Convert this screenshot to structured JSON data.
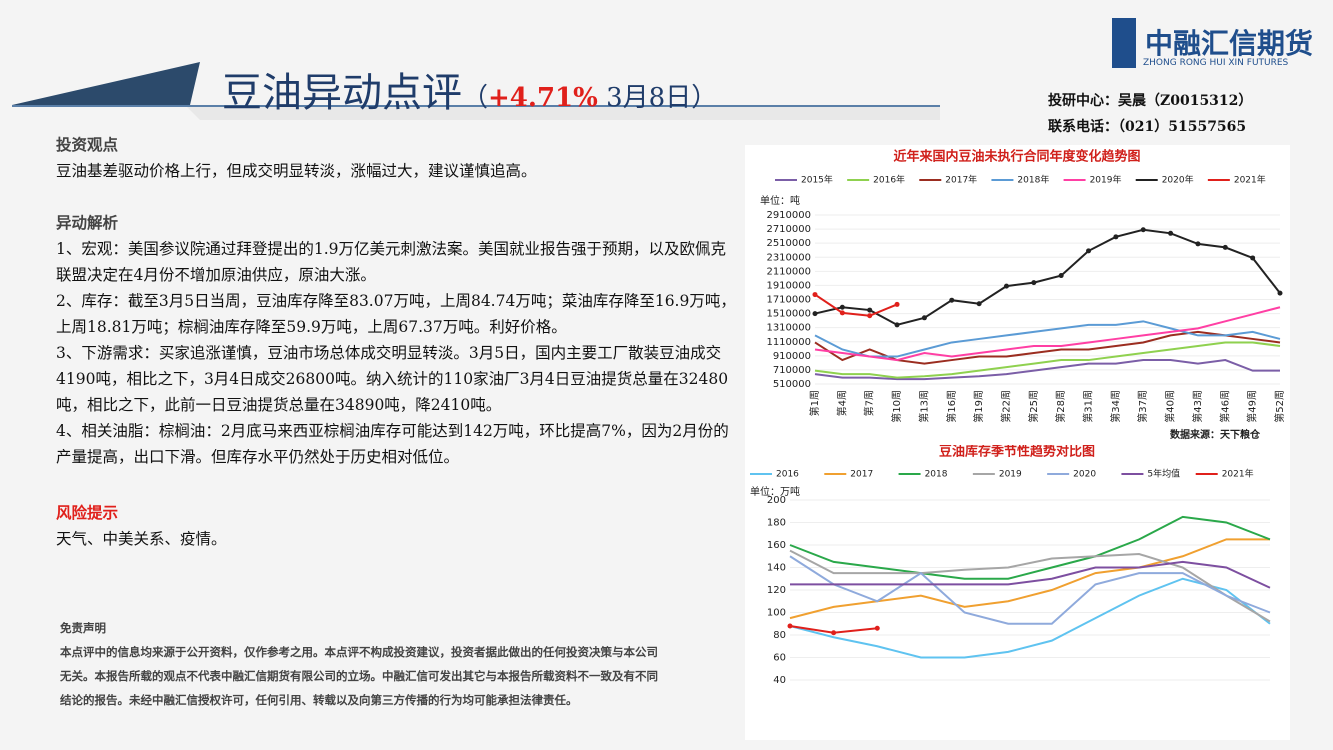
{
  "header": {
    "title": "豆油异动点评",
    "change": "+4.71%",
    "date": "3月8日",
    "contact": "投研中心：吴晨（Z0015312）",
    "phone": "联系电话：（021）51557565",
    "logo": "中融汇信期货",
    "logo_en": "ZHONG RONG HUI XIN FUTURES"
  },
  "view": {
    "heading": "投资观点",
    "text": "豆油基差驱动价格上行，但成交明显转淡，涨幅过大，建议谨慎追高。"
  },
  "analysis": {
    "heading": "异动解析",
    "items": [
      "1、宏观：美国参议院通过拜登提出的1.9万亿美元刺激法案。美国就业报告强于预期，以及欧佩克联盟决定在4月份不增加原油供应，原油大涨。",
      "2、库存：截至3月5日当周，豆油库存降至83.07万吨，上周84.74万吨；菜油库存降至16.9万吨，上周18.81万吨；棕榈油库存降至59.9万吨，上周67.37万吨。利好价格。",
      "3、下游需求：买家追涨谨慎，豆油市场总体成交明显转淡。3月5日，国内主要工厂散装豆油成交4190吨，相比之下，3月4日成交26800吨。纳入统计的110家油厂3月4日豆油提货总量在32480吨，相比之下，此前一日豆油提货总量在34890吨，降2410吨。",
      "4、相关油脂：棕榈油：2月底马来西亚棕榈油库存可能达到142万吨，环比提高7%，因为2月份的产量提高，出口下滑。但库存水平仍然处于历史相对低位。"
    ]
  },
  "risk": {
    "heading": "风险提示",
    "text": "天气、中美关系、疫情。"
  },
  "disclaimer": {
    "heading": "免责声明",
    "text": "本点评中的信息均来源于公开资料，仅作参考之用。本点评不构成投资建议，投资者据此做出的任何投资决策与本公司无关。本报告所载的观点不代表中融汇信期货有限公司的立场。中融汇信可发出其它与本报告所载资料不一致及有不同结论的报告。未经中融汇信授权许可，任何引用、转载以及向第三方传播的行为均可能承担法律责任。"
  },
  "chart_data": [
    {
      "type": "line",
      "title": "近年来国内豆油未执行合同年度变化趋势图",
      "unit": "单位：吨",
      "source": "数据来源：天下粮仓",
      "categories": [
        "第1周",
        "第4周",
        "第7周",
        "第10周",
        "第13周",
        "第16周",
        "第19周",
        "第22周",
        "第25周",
        "第28周",
        "第31周",
        "第34周",
        "第37周",
        "第40周",
        "第43周",
        "第46周",
        "第49周",
        "第52周"
      ],
      "ylim": [
        510000,
        2910000
      ],
      "yticks": [
        510000,
        710000,
        910000,
        1110000,
        1310000,
        1510000,
        1710000,
        1910000,
        2110000,
        2310000,
        2510000,
        2710000,
        2910000
      ],
      "series": [
        {
          "name": "2015年",
          "color": "#7b5ea7",
          "values": [
            650000,
            600000,
            600000,
            580000,
            580000,
            600000,
            620000,
            650000,
            700000,
            750000,
            800000,
            800000,
            850000,
            850000,
            800000,
            850000,
            700000,
            700000
          ]
        },
        {
          "name": "2016年",
          "color": "#8fd14f",
          "values": [
            700000,
            650000,
            650000,
            600000,
            620000,
            650000,
            700000,
            750000,
            800000,
            850000,
            850000,
            900000,
            950000,
            1000000,
            1050000,
            1100000,
            1100000,
            1050000
          ]
        },
        {
          "name": "2017年",
          "color": "#9b2d20",
          "values": [
            1100000,
            850000,
            1000000,
            850000,
            800000,
            850000,
            900000,
            900000,
            950000,
            1000000,
            1000000,
            1050000,
            1100000,
            1200000,
            1250000,
            1200000,
            1150000,
            1100000
          ]
        },
        {
          "name": "2018年",
          "color": "#5b9bd5",
          "values": [
            1200000,
            1000000,
            900000,
            900000,
            1000000,
            1100000,
            1150000,
            1200000,
            1250000,
            1300000,
            1350000,
            1350000,
            1400000,
            1300000,
            1200000,
            1200000,
            1250000,
            1150000
          ]
        },
        {
          "name": "2019年",
          "color": "#ff3fa4",
          "values": [
            1000000,
            950000,
            900000,
            850000,
            950000,
            900000,
            950000,
            1000000,
            1050000,
            1050000,
            1100000,
            1150000,
            1200000,
            1250000,
            1300000,
            1400000,
            1500000,
            1600000
          ]
        },
        {
          "name": "2020年",
          "color": "#222222",
          "values": [
            1510000,
            1600000,
            1560000,
            1350000,
            1450000,
            1700000,
            1650000,
            1900000,
            1950000,
            2050000,
            2400000,
            2600000,
            2700000,
            2650000,
            2500000,
            2450000,
            2300000,
            1800000
          ]
        },
        {
          "name": "2021年",
          "color": "#e0201b",
          "values": [
            1780000,
            1520000,
            1480000,
            1640000,
            null,
            null,
            null,
            null,
            null,
            null,
            null,
            null,
            null,
            null,
            null,
            null,
            null,
            null
          ]
        }
      ]
    },
    {
      "type": "line",
      "title": "豆油库存季节性趋势对比图",
      "unit": "单位：万吨",
      "ylim": [
        40,
        200
      ],
      "yticks": [
        40,
        60,
        80,
        100,
        120,
        140,
        160,
        180,
        200
      ],
      "series": [
        {
          "name": "2016",
          "color": "#5fc3f0",
          "values": [
            88,
            78,
            70,
            60,
            60,
            65,
            75,
            95,
            115,
            130,
            120,
            90
          ]
        },
        {
          "name": "2017",
          "color": "#f0a030",
          "values": [
            95,
            105,
            110,
            115,
            105,
            110,
            120,
            135,
            140,
            150,
            165,
            165
          ]
        },
        {
          "name": "2018",
          "color": "#2aa84a",
          "values": [
            160,
            145,
            140,
            135,
            130,
            130,
            140,
            150,
            165,
            185,
            180,
            165
          ]
        },
        {
          "name": "2019",
          "color": "#a6a6a6",
          "values": [
            155,
            135,
            135,
            135,
            138,
            140,
            148,
            150,
            152,
            140,
            115,
            92
          ]
        },
        {
          "name": "2020",
          "color": "#8faadc",
          "values": [
            150,
            125,
            110,
            135,
            100,
            90,
            90,
            125,
            135,
            135,
            115,
            100
          ]
        },
        {
          "name": "5年均值",
          "color": "#7d4fa0",
          "values": [
            125,
            125,
            125,
            125,
            125,
            125,
            130,
            140,
            140,
            145,
            140,
            122
          ]
        },
        {
          "name": "2021年",
          "color": "#e0201b",
          "values": [
            88,
            82,
            86,
            null,
            null,
            null,
            null,
            null,
            null,
            null,
            null,
            null
          ]
        }
      ]
    }
  ]
}
